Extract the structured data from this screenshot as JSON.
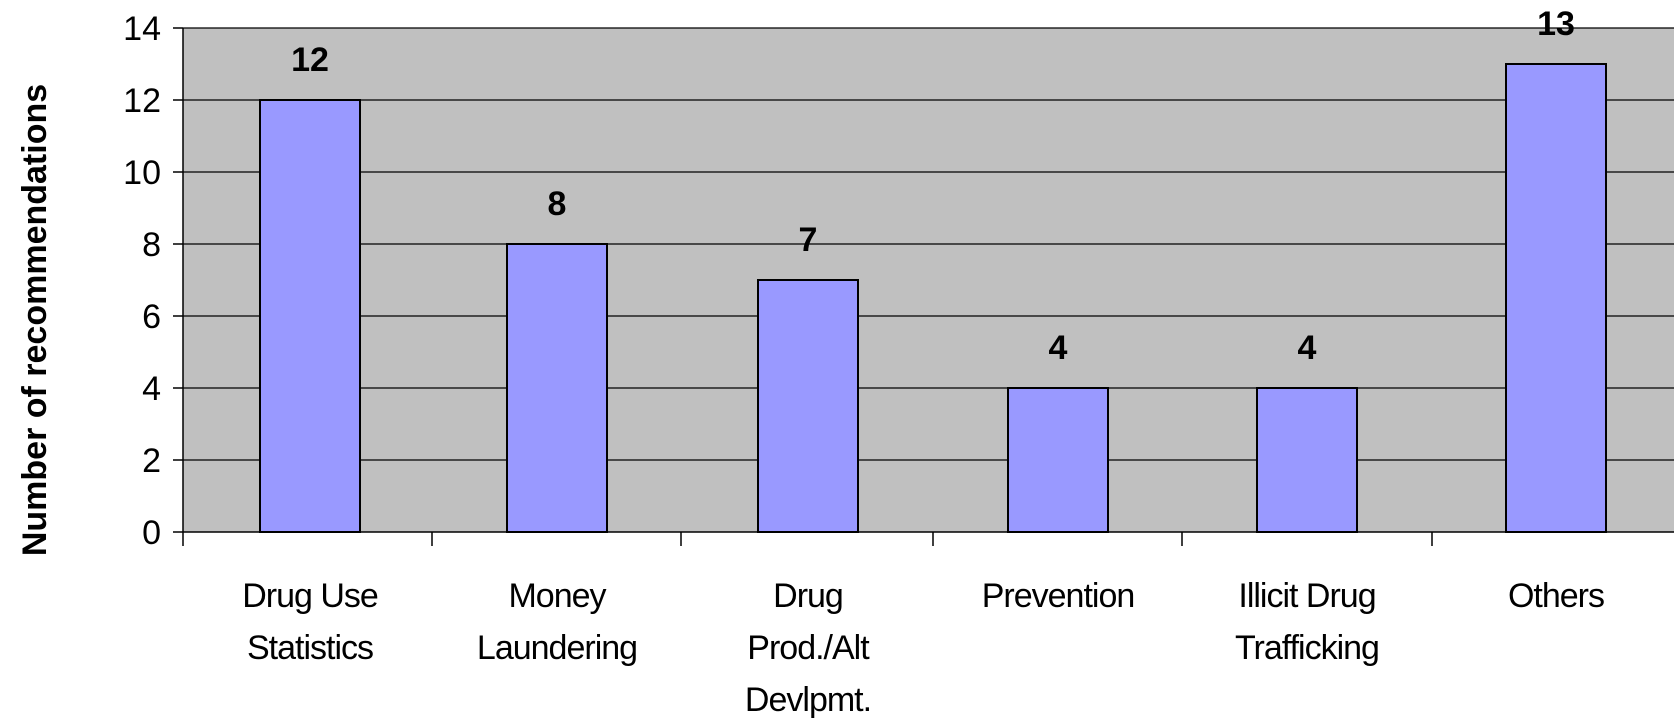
{
  "chart_data": {
    "type": "bar",
    "categories": [
      [
        "Drug Use",
        "Statistics"
      ],
      [
        "Money",
        "Laundering"
      ],
      [
        "Drug",
        "Prod./Alt",
        "Devlpmt."
      ],
      [
        "Prevention"
      ],
      [
        "Illicit Drug",
        "Trafficking"
      ],
      [
        "Others"
      ]
    ],
    "values": [
      12,
      8,
      7,
      4,
      4,
      13
    ],
    "ylabel": "Number of recommendations",
    "xlabel": "",
    "ylim": [
      0,
      14
    ],
    "yticks": [
      0,
      2,
      4,
      6,
      8,
      10,
      12,
      14
    ],
    "grid": true,
    "data_labels": true,
    "legend": "none",
    "colors": {
      "bar_fill": "#9999FF",
      "bar_stroke": "#000000",
      "plot_background": "#C0C0C0",
      "gridline": "#000000"
    }
  }
}
